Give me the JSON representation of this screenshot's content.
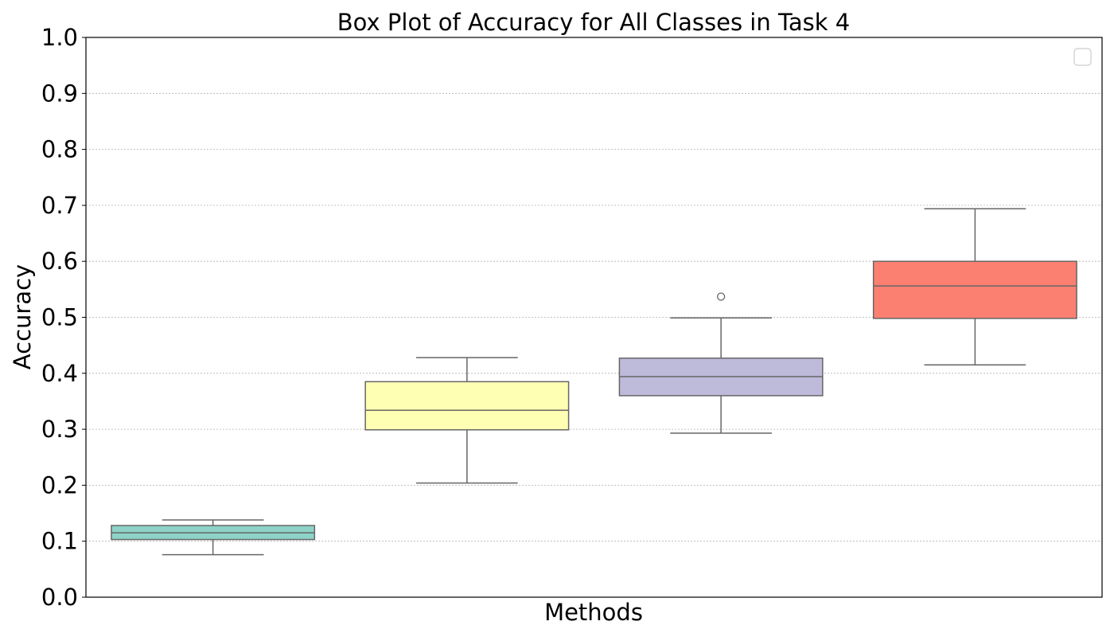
{
  "chart_data": {
    "type": "box",
    "title": "Box Plot of Accuracy for All Classes in Task 4",
    "xlabel": "Methods",
    "ylabel": "Accuracy",
    "ylim": [
      0.0,
      1.0
    ],
    "yticks": [
      0.0,
      0.1,
      0.2,
      0.3,
      0.4,
      0.5,
      0.6,
      0.7,
      0.8,
      0.9,
      1.0
    ],
    "ytick_labels": [
      "0.0",
      "0.1",
      "0.2",
      "0.3",
      "0.4",
      "0.5",
      "0.6",
      "0.7",
      "0.8",
      "0.9",
      "1.0"
    ],
    "grid": "y-dotted",
    "legend": "top-right (empty)",
    "boxes": [
      {
        "whislo": 0.076,
        "q1": 0.103,
        "med": 0.115,
        "q3": 0.128,
        "whishi": 0.138,
        "fliers": [],
        "color": "#8dd3c7"
      },
      {
        "whislo": 0.204,
        "q1": 0.299,
        "med": 0.334,
        "q3": 0.385,
        "whishi": 0.428,
        "fliers": [],
        "color": "#ffffb3"
      },
      {
        "whislo": 0.293,
        "q1": 0.36,
        "med": 0.394,
        "q3": 0.427,
        "whishi": 0.499,
        "fliers": [
          0.537
        ],
        "color": "#bebada"
      },
      {
        "whislo": 0.415,
        "q1": 0.498,
        "med": 0.556,
        "q3": 0.6,
        "whishi": 0.694,
        "fliers": [],
        "color": "#fb8072"
      }
    ]
  }
}
